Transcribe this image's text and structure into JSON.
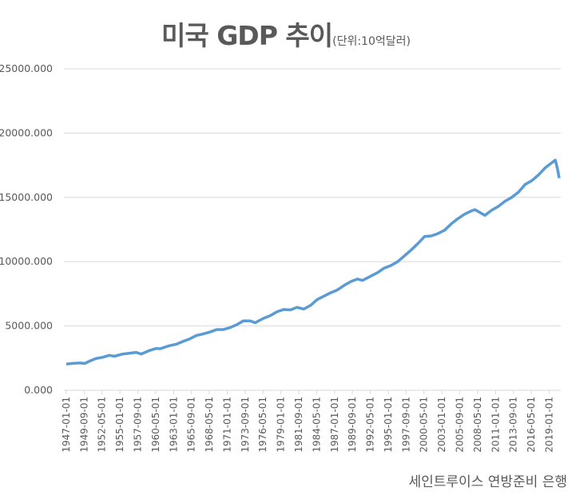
{
  "chart_data": {
    "type": "line",
    "title": "미국 GDP 추이",
    "unit_note": "(단위:10억달러)",
    "source": "세인트루이스 연방준비 은행",
    "ylim": [
      0,
      25000
    ],
    "y_ticks": [
      "0.000",
      "5000.000",
      "10000.000",
      "15000.000",
      "20000.000",
      "25000.000"
    ],
    "y_tick_values": [
      0,
      5000,
      10000,
      15000,
      20000,
      25000
    ],
    "x_range": [
      "1947-01-01",
      "2020-07-01"
    ],
    "x_ticks": [
      "1947-01-01",
      "1949-09-01",
      "1952-05-01",
      "1955-01-01",
      "1957-09-01",
      "1960-05-01",
      "1963-01-01",
      "1965-09-01",
      "1968-05-01",
      "1971-01-01",
      "1973-09-01",
      "1976-05-01",
      "1979-01-01",
      "1981-09-01",
      "1984-05-01",
      "1987-01-01",
      "1989-09-01",
      "1992-05-01",
      "1995-01-01",
      "1997-09-01",
      "2000-05-01",
      "2003-01-01",
      "2005-09-01",
      "2008-05-01",
      "2011-01-01",
      "2013-09-01",
      "2016-05-01",
      "2019-01-01"
    ],
    "grid": true,
    "line_color": "#5b9bd5",
    "series": [
      {
        "points": [
          [
            "1947-01-01",
            2034
          ],
          [
            "1948-01-01",
            2087
          ],
          [
            "1949-01-01",
            2120
          ],
          [
            "1949-10-01",
            2085
          ],
          [
            "1950-06-01",
            2250
          ],
          [
            "1951-06-01",
            2460
          ],
          [
            "1952-06-01",
            2560
          ],
          [
            "1953-06-01",
            2720
          ],
          [
            "1954-03-01",
            2640
          ],
          [
            "1955-06-01",
            2820
          ],
          [
            "1956-06-01",
            2880
          ],
          [
            "1957-06-01",
            2950
          ],
          [
            "1958-03-01",
            2820
          ],
          [
            "1959-06-01",
            3090
          ],
          [
            "1960-06-01",
            3250
          ],
          [
            "1961-01-01",
            3230
          ],
          [
            "1962-06-01",
            3470
          ],
          [
            "1963-06-01",
            3580
          ],
          [
            "1964-06-01",
            3800
          ],
          [
            "1965-06-01",
            4000
          ],
          [
            "1966-06-01",
            4260
          ],
          [
            "1967-06-01",
            4380
          ],
          [
            "1968-06-01",
            4530
          ],
          [
            "1969-06-01",
            4720
          ],
          [
            "1970-06-01",
            4720
          ],
          [
            "1971-06-01",
            4870
          ],
          [
            "1972-06-01",
            5100
          ],
          [
            "1973-06-01",
            5400
          ],
          [
            "1974-06-01",
            5400
          ],
          [
            "1975-03-01",
            5250
          ],
          [
            "1976-06-01",
            5600
          ],
          [
            "1977-06-01",
            5800
          ],
          [
            "1978-06-01",
            6100
          ],
          [
            "1979-06-01",
            6280
          ],
          [
            "1980-06-01",
            6250
          ],
          [
            "1981-06-01",
            6450
          ],
          [
            "1982-06-01",
            6310
          ],
          [
            "1983-06-01",
            6600
          ],
          [
            "1984-06-01",
            7050
          ],
          [
            "1985-06-01",
            7320
          ],
          [
            "1986-06-01",
            7580
          ],
          [
            "1987-06-01",
            7800
          ],
          [
            "1988-06-01",
            8150
          ],
          [
            "1989-06-01",
            8450
          ],
          [
            "1990-06-01",
            8650
          ],
          [
            "1991-03-01",
            8540
          ],
          [
            "1992-06-01",
            8880
          ],
          [
            "1993-06-01",
            9150
          ],
          [
            "1994-06-01",
            9500
          ],
          [
            "1995-06-01",
            9700
          ],
          [
            "1996-06-01",
            10000
          ],
          [
            "1997-06-01",
            10450
          ],
          [
            "1998-06-01",
            10900
          ],
          [
            "1999-06-01",
            11400
          ],
          [
            "2000-06-01",
            11950
          ],
          [
            "2001-06-01",
            12000
          ],
          [
            "2002-06-01",
            12180
          ],
          [
            "2003-06-01",
            12450
          ],
          [
            "2004-06-01",
            12950
          ],
          [
            "2005-06-01",
            13350
          ],
          [
            "2006-06-01",
            13700
          ],
          [
            "2007-06-01",
            13950
          ],
          [
            "2007-12-01",
            14050
          ],
          [
            "2009-06-01",
            13600
          ],
          [
            "2010-06-01",
            14000
          ],
          [
            "2011-06-01",
            14300
          ],
          [
            "2012-06-01",
            14700
          ],
          [
            "2013-06-01",
            15000
          ],
          [
            "2014-06-01",
            15400
          ],
          [
            "2015-06-01",
            16000
          ],
          [
            "2016-06-01",
            16300
          ],
          [
            "2017-06-01",
            16750
          ],
          [
            "2018-06-01",
            17300
          ],
          [
            "2019-06-01",
            17700
          ],
          [
            "2019-12-01",
            17900
          ],
          [
            "2020-04-01",
            17200
          ],
          [
            "2020-07-01",
            16500
          ]
        ]
      }
    ]
  }
}
